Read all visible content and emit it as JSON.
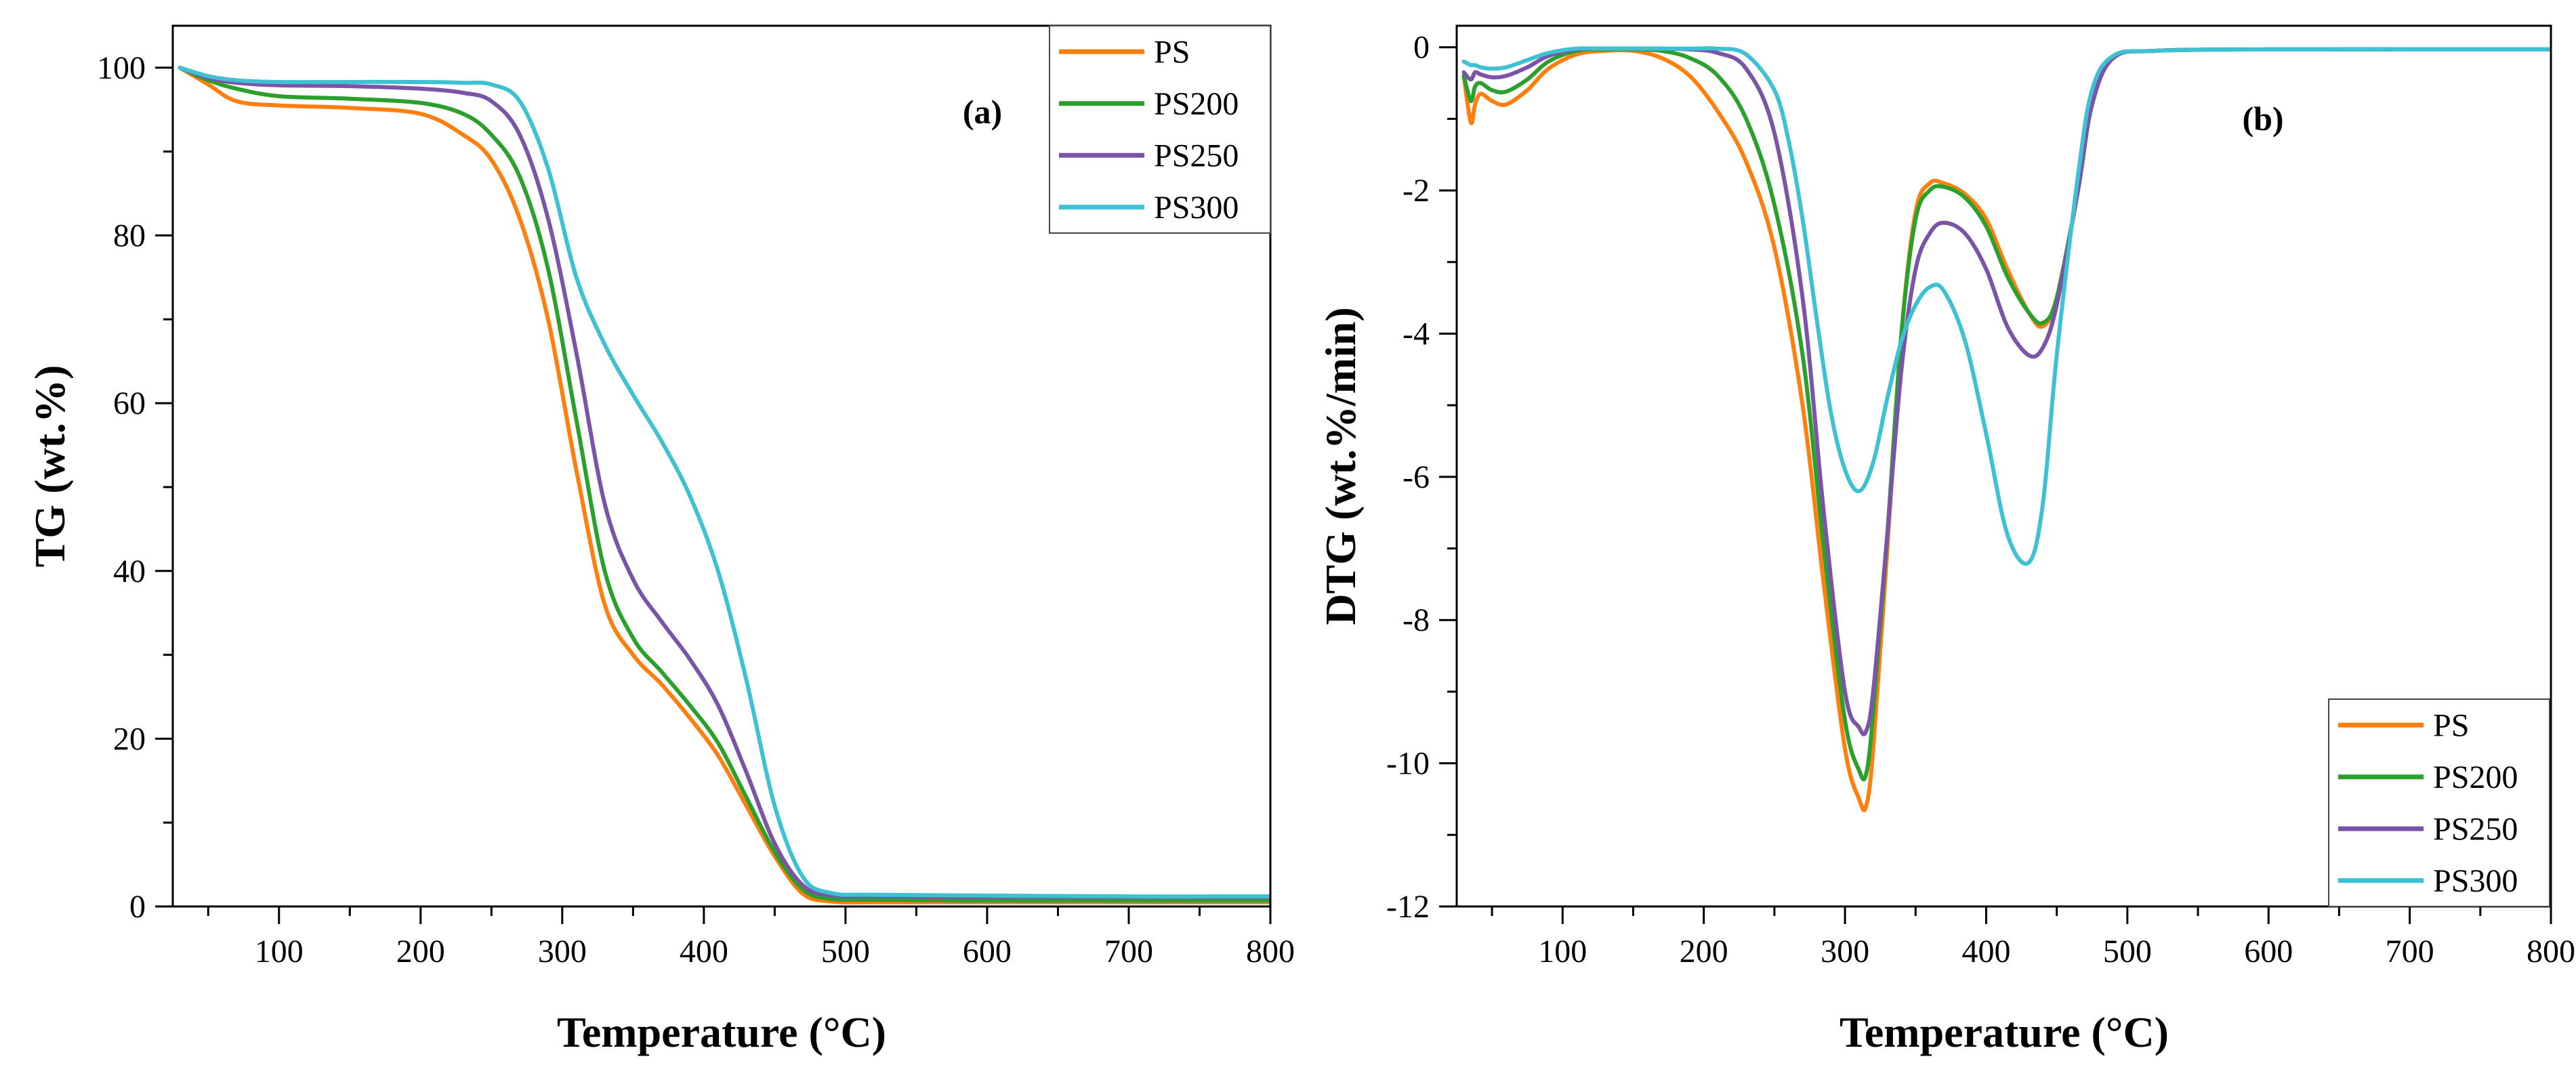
{
  "colors": {
    "PS": "#ff7f0e",
    "PS200": "#2ca02c",
    "PS250": "#7b54a8",
    "PS300": "#3ec1d3"
  },
  "chart_data": [
    {
      "id": "a",
      "type": "line",
      "panel_label": "(a)",
      "xlabel": "Temperature (°C)",
      "ylabel": "TG (wt.%)",
      "xlim": [
        25,
        800
      ],
      "ylim": [
        0,
        105
      ],
      "xticks": [
        100,
        200,
        300,
        400,
        500,
        600,
        700,
        800
      ],
      "yticks": [
        0,
        20,
        40,
        60,
        80,
        100
      ],
      "legend_position": "top-right",
      "series": [
        {
          "name": "PS",
          "x": [
            30,
            50,
            70,
            100,
            150,
            200,
            230,
            250,
            270,
            290,
            310,
            330,
            350,
            370,
            390,
            410,
            430,
            450,
            470,
            490,
            520,
            600,
            700,
            800
          ],
          "y": [
            100,
            98,
            96,
            95.5,
            95.2,
            94.5,
            92,
            89,
            82,
            70,
            52,
            36,
            30,
            26.5,
            22.5,
            18,
            12,
            6,
            1.5,
            0.6,
            0.5,
            0.5,
            0.5,
            0.5
          ]
        },
        {
          "name": "PS200",
          "x": [
            30,
            50,
            70,
            100,
            150,
            200,
            230,
            250,
            270,
            290,
            310,
            330,
            350,
            370,
            390,
            410,
            430,
            450,
            470,
            490,
            520,
            600,
            700,
            800
          ],
          "y": [
            100,
            98.5,
            97.5,
            96.6,
            96.3,
            95.8,
            94.5,
            92,
            87,
            76,
            58,
            40,
            32,
            28,
            24,
            19.5,
            13,
            6.5,
            2,
            0.9,
            0.8,
            0.7,
            0.7,
            0.7
          ]
        },
        {
          "name": "PS250",
          "x": [
            30,
            50,
            70,
            100,
            150,
            200,
            230,
            250,
            270,
            290,
            310,
            330,
            350,
            370,
            390,
            410,
            430,
            450,
            470,
            490,
            520,
            600,
            700,
            800
          ],
          "y": [
            100,
            98.8,
            98.2,
            97.9,
            97.8,
            97.5,
            97,
            96,
            92,
            82,
            66,
            48,
            39,
            34,
            29.5,
            24,
            16,
            7.5,
            2.5,
            1.3,
            1.2,
            1.1,
            1.1,
            1.1
          ]
        },
        {
          "name": "PS300",
          "x": [
            30,
            50,
            70,
            100,
            150,
            200,
            230,
            250,
            270,
            290,
            310,
            330,
            350,
            370,
            390,
            410,
            430,
            450,
            470,
            490,
            520,
            600,
            700,
            800
          ],
          "y": [
            100,
            99,
            98.5,
            98.3,
            98.3,
            98.3,
            98.2,
            98,
            96,
            88,
            75,
            67,
            61,
            55.5,
            49,
            40,
            27,
            12,
            3.5,
            1.6,
            1.4,
            1.3,
            1.2,
            1.2
          ]
        }
      ]
    },
    {
      "id": "b",
      "type": "line",
      "panel_label": "(b)",
      "xlabel": "Temperature (°C)",
      "ylabel": "DTG (wt.%/min)",
      "xlim": [
        25,
        800
      ],
      "ylim": [
        -12,
        0.3
      ],
      "xticks": [
        100,
        200,
        300,
        400,
        500,
        600,
        700,
        800
      ],
      "yticks": [
        0,
        -2,
        -4,
        -6,
        -8,
        -10,
        -12
      ],
      "legend_position": "bottom-right",
      "series": [
        {
          "name": "PS",
          "x": [
            30,
            35,
            38,
            42,
            50,
            60,
            75,
            90,
            110,
            130,
            150,
            170,
            190,
            210,
            230,
            250,
            270,
            285,
            300,
            310,
            315,
            320,
            330,
            340,
            350,
            360,
            370,
            385,
            400,
            415,
            430,
            440,
            450,
            465,
            475,
            490,
            520,
            600,
            700,
            800
          ],
          "y": [
            -0.4,
            -1.05,
            -0.8,
            -0.65,
            -0.75,
            -0.8,
            -0.6,
            -0.3,
            -0.1,
            -0.05,
            -0.05,
            -0.15,
            -0.4,
            -0.9,
            -1.6,
            -2.8,
            -5,
            -7.5,
            -9.8,
            -10.5,
            -10.6,
            -9.8,
            -7,
            -4,
            -2.3,
            -1.9,
            -1.9,
            -2.05,
            -2.4,
            -3.1,
            -3.7,
            -3.9,
            -3.5,
            -2,
            -0.8,
            -0.15,
            -0.05,
            -0.03,
            -0.03,
            -0.03
          ]
        },
        {
          "name": "PS200",
          "x": [
            30,
            35,
            38,
            42,
            50,
            60,
            75,
            90,
            110,
            130,
            150,
            170,
            190,
            210,
            230,
            250,
            270,
            285,
            300,
            310,
            315,
            320,
            330,
            340,
            350,
            360,
            370,
            385,
            400,
            415,
            430,
            440,
            450,
            465,
            475,
            490,
            520,
            600,
            700,
            800
          ],
          "y": [
            -0.4,
            -0.75,
            -0.55,
            -0.5,
            -0.6,
            -0.62,
            -0.45,
            -0.2,
            -0.05,
            -0.03,
            -0.03,
            -0.05,
            -0.15,
            -0.4,
            -1,
            -2.2,
            -4.3,
            -7,
            -9.4,
            -10.1,
            -10.15,
            -9.3,
            -6.8,
            -4,
            -2.4,
            -2,
            -1.95,
            -2.1,
            -2.5,
            -3.2,
            -3.7,
            -3.85,
            -3.5,
            -2,
            -0.8,
            -0.15,
            -0.05,
            -0.03,
            -0.03,
            -0.03
          ]
        },
        {
          "name": "PS250",
          "x": [
            30,
            35,
            38,
            42,
            50,
            60,
            75,
            90,
            110,
            130,
            150,
            170,
            190,
            210,
            230,
            250,
            270,
            285,
            300,
            310,
            315,
            320,
            330,
            340,
            350,
            360,
            370,
            385,
            400,
            415,
            430,
            440,
            450,
            465,
            475,
            490,
            520,
            600,
            700,
            800
          ],
          "y": [
            -0.35,
            -0.45,
            -0.35,
            -0.38,
            -0.42,
            -0.4,
            -0.28,
            -0.12,
            -0.03,
            -0.02,
            -0.02,
            -0.02,
            -0.03,
            -0.08,
            -0.3,
            -1.2,
            -3.5,
            -6.5,
            -9,
            -9.5,
            -9.55,
            -9,
            -6.8,
            -4.5,
            -3.1,
            -2.6,
            -2.45,
            -2.6,
            -3.1,
            -3.9,
            -4.3,
            -4.2,
            -3.6,
            -2,
            -0.8,
            -0.15,
            -0.05,
            -0.03,
            -0.03,
            -0.03
          ]
        },
        {
          "name": "PS300",
          "x": [
            30,
            35,
            38,
            42,
            50,
            60,
            75,
            90,
            110,
            130,
            150,
            170,
            190,
            210,
            230,
            250,
            260,
            270,
            280,
            290,
            300,
            310,
            320,
            330,
            340,
            350,
            360,
            370,
            385,
            400,
            415,
            430,
            440,
            450,
            465,
            475,
            490,
            520,
            600,
            700,
            800
          ],
          "y": [
            -0.2,
            -0.25,
            -0.25,
            -0.28,
            -0.3,
            -0.28,
            -0.18,
            -0.08,
            -0.02,
            -0.02,
            -0.02,
            -0.02,
            -0.02,
            -0.02,
            -0.1,
            -0.6,
            -1.3,
            -2.4,
            -3.8,
            -5.1,
            -5.9,
            -6.2,
            -5.8,
            -4.9,
            -4.1,
            -3.6,
            -3.35,
            -3.4,
            -4.1,
            -5.4,
            -6.8,
            -7.2,
            -6.4,
            -4.3,
            -1.8,
            -0.6,
            -0.12,
            -0.05,
            -0.03,
            -0.03,
            -0.03
          ]
        }
      ]
    }
  ]
}
